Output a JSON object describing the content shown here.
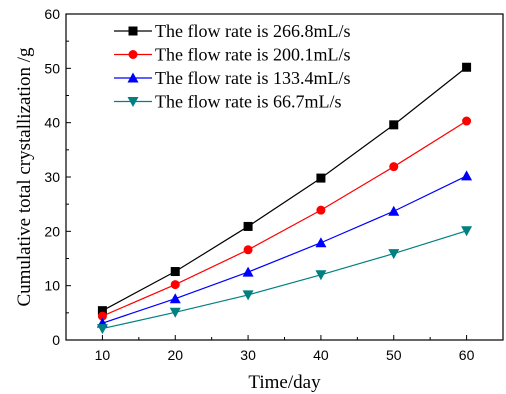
{
  "chart_data": {
    "type": "line",
    "xlabel": "Time/day",
    "ylabel": "Cumulative total crystallization /g",
    "xlim": [
      5,
      65
    ],
    "ylim": [
      0,
      60
    ],
    "x_ticks": [
      10,
      20,
      30,
      40,
      50,
      60
    ],
    "y_ticks": [
      0,
      10,
      20,
      30,
      40,
      50,
      60
    ],
    "grid": false,
    "legend_position": "top-left",
    "x": [
      10,
      20,
      30,
      40,
      50,
      60
    ],
    "series": [
      {
        "name": "The flow rate is 266.8mL/s",
        "color": "#000000",
        "marker": "square",
        "values": [
          5.4,
          12.6,
          20.9,
          29.8,
          39.6,
          50.2
        ]
      },
      {
        "name": "The flow rate is 200.1mL/s",
        "color": "#ff0000",
        "marker": "circle",
        "values": [
          4.4,
          10.2,
          16.6,
          23.9,
          31.9,
          40.3
        ]
      },
      {
        "name": "The flow rate is 133.4mL/s",
        "color": "#0000ff",
        "marker": "triangle-up",
        "values": [
          3.1,
          7.6,
          12.5,
          17.9,
          23.7,
          30.2
        ]
      },
      {
        "name": "The flow rate is 66.7mL/s",
        "color": "#008080",
        "marker": "triangle-down",
        "values": [
          2.1,
          5.1,
          8.3,
          12.0,
          15.9,
          20.1
        ]
      }
    ]
  }
}
